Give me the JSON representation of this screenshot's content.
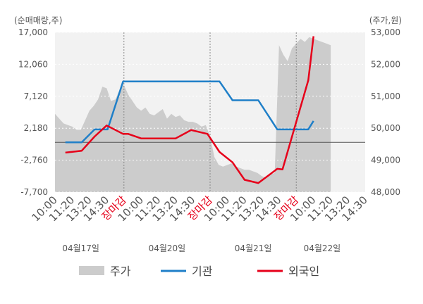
{
  "chart_data": {
    "type": "line",
    "left_axis_label": "(순매매량,주)",
    "right_axis_label": "(주가,원)",
    "left_ticks": [
      "17,000",
      "12,060",
      "7,120",
      "2,180",
      "-2,760",
      "-7,700"
    ],
    "left_tick_values": [
      17000,
      12060,
      7120,
      2180,
      -2760,
      -7700
    ],
    "right_ticks": [
      "53,000",
      "52,000",
      "51,000",
      "50,000",
      "49,000",
      "48,000"
    ],
    "right_tick_values": [
      53000,
      52000,
      51000,
      50000,
      49000,
      48000
    ],
    "left_ylim": [
      -7700,
      17000
    ],
    "right_ylim": [
      48000,
      53000
    ],
    "zero_line": 0,
    "x_tick_labels": [
      "10:00",
      "11:20",
      "13:20",
      "14:30",
      "장마감",
      "10:00",
      "11:20",
      "13:20",
      "14:30",
      "장마감",
      "10:00",
      "11:20",
      "13:20",
      "14:30",
      "장마감",
      "10:00",
      "11:20",
      "13:20",
      "14:30"
    ],
    "x_tick_colors": [
      "#555555",
      "#555555",
      "#555555",
      "#555555",
      "#e6001a",
      "#555555",
      "#555555",
      "#555555",
      "#555555",
      "#e6001a",
      "#555555",
      "#555555",
      "#555555",
      "#555555",
      "#e6001a",
      "#555555",
      "#555555",
      "#555555",
      "#555555"
    ],
    "day_labels": [
      "04월17일",
      "04월20일",
      "04월21일",
      "04월22일"
    ],
    "day_boundaries_after_tick": [
      4,
      9,
      14
    ],
    "x_positions_count": 19,
    "series": [
      {
        "name": "주가",
        "axis": "right",
        "kind": "area",
        "color": "#cccccc",
        "x": [
          0,
          0.25,
          0.5,
          0.75,
          1.0,
          1.25,
          1.5,
          1.75,
          2.0,
          2.25,
          2.5,
          2.75,
          3.0,
          3.25,
          3.5,
          3.75,
          4.0,
          4.25,
          4.5,
          4.75,
          5.0,
          5.25,
          5.5,
          5.75,
          6.0,
          6.25,
          6.5,
          6.75,
          7.0,
          7.25,
          7.5,
          7.75,
          8.0,
          8.25,
          8.5,
          8.75,
          9.0,
          9.25,
          9.5,
          9.75,
          10.0,
          10.25,
          10.5,
          10.75,
          11.0,
          11.25,
          11.5,
          11.75,
          12.0,
          12.25,
          12.5,
          12.75,
          13.0,
          13.25,
          13.5,
          13.75,
          14.0,
          14.25,
          14.5,
          14.75,
          15.0,
          15.25,
          15.5,
          15.75,
          16.0
        ],
        "values": [
          50450,
          50300,
          50150,
          50100,
          50050,
          49950,
          49950,
          50250,
          50550,
          50700,
          50900,
          51300,
          51250,
          50850,
          50900,
          51200,
          51350,
          51050,
          50850,
          50650,
          50550,
          50650,
          50450,
          50400,
          50500,
          50600,
          50300,
          50450,
          50350,
          50400,
          50250,
          50200,
          50200,
          50150,
          50050,
          50100,
          49750,
          49100,
          48850,
          48800,
          48850,
          48900,
          48800,
          48750,
          48700,
          48700,
          48650,
          48600,
          48500,
          48450,
          48550,
          48600,
          52600,
          52300,
          52100,
          52500,
          52650,
          52800,
          52700,
          52850,
          52800,
          52750,
          52700,
          52650,
          52600
        ]
      },
      {
        "name": "기관",
        "axis": "left",
        "kind": "line",
        "color": "#1f7fc8",
        "x": [
          0.6,
          1.55,
          2.3,
          3.05,
          3.95,
          4.25,
          5.0,
          6.0,
          7.0,
          8.0,
          8.9,
          9.55,
          10.3,
          11.0,
          11.8,
          12.9,
          13.2,
          14.7,
          15.0
        ],
        "values": [
          0,
          0,
          2000,
          2000,
          9400,
          9400,
          9400,
          9400,
          9400,
          9400,
          9400,
          9400,
          6500,
          6500,
          6500,
          2000,
          2000,
          2000,
          3300
        ]
      },
      {
        "name": "외국인",
        "axis": "left",
        "kind": "line",
        "color": "#e6001a",
        "x": [
          0.6,
          1.55,
          2.3,
          3.0,
          3.95,
          4.25,
          5.0,
          6.0,
          7.0,
          7.9,
          8.85,
          9.55,
          10.3,
          11.0,
          11.8,
          12.9,
          13.2,
          14.7,
          15.0
        ],
        "values": [
          -1600,
          -1300,
          900,
          2600,
          1300,
          1300,
          600,
          600,
          600,
          1900,
          1300,
          -1500,
          -3100,
          -5800,
          -6300,
          -4100,
          -4200,
          9600,
          16400
        ]
      }
    ],
    "legend": [
      {
        "label": "주가",
        "symbol": "area",
        "color": "#cccccc"
      },
      {
        "label": "기관",
        "symbol": "line",
        "color": "#1f7fc8"
      },
      {
        "label": "외국인",
        "symbol": "line",
        "color": "#e6001a"
      }
    ],
    "legend_position": "bottom"
  }
}
